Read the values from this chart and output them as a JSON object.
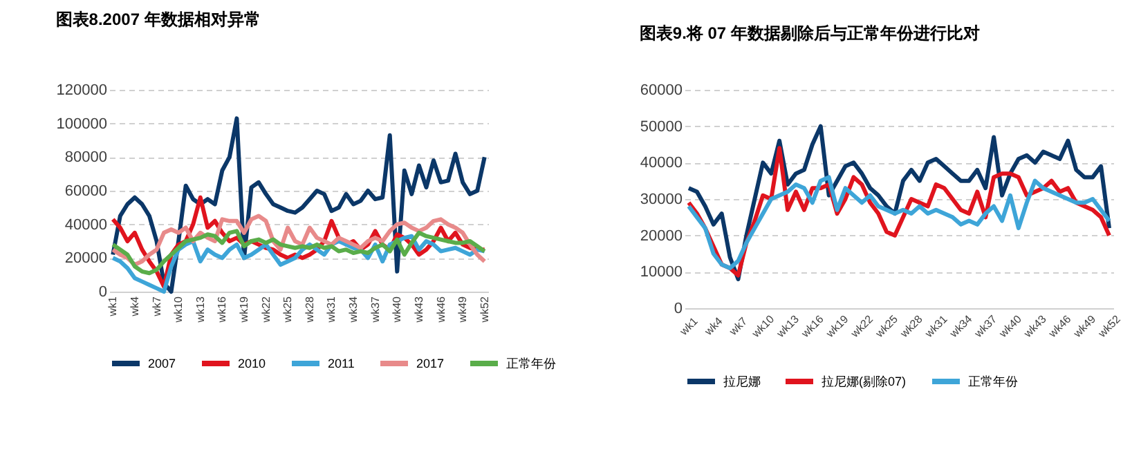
{
  "chart_data": [
    {
      "type": "line",
      "title": "图表8.2007 年数据相对异常",
      "categories": [
        "wk1",
        null,
        null,
        "wk4",
        null,
        null,
        "wk7",
        null,
        null,
        "wk10",
        null,
        null,
        "wk13",
        null,
        null,
        "wk16",
        null,
        null,
        "wk19",
        null,
        null,
        "wk22",
        null,
        null,
        "wk25",
        null,
        null,
        "wk28",
        null,
        null,
        "wk31",
        null,
        null,
        "wk34",
        null,
        null,
        "wk37",
        null,
        null,
        "wk40",
        null,
        null,
        "wk43",
        null,
        null,
        "wk46",
        null,
        null,
        "wk49",
        null,
        null,
        "wk52"
      ],
      "series": [
        {
          "name": "2007",
          "color": "#0b3768",
          "values": [
            22000,
            45000,
            52000,
            56000,
            52000,
            45000,
            30000,
            5000,
            0,
            30000,
            63000,
            55000,
            52000,
            55000,
            52000,
            72000,
            80000,
            103000,
            20000,
            62000,
            65000,
            58000,
            52000,
            50000,
            48000,
            47000,
            50000,
            55000,
            60000,
            58000,
            48000,
            50000,
            58000,
            52000,
            54000,
            60000,
            55000,
            56000,
            93000,
            12000,
            72000,
            58000,
            75000,
            62000,
            78000,
            65000,
            66000,
            82000,
            65000,
            58000,
            60000,
            80000
          ]
        },
        {
          "name": "2010",
          "color": "#e0141e",
          "values": [
            43000,
            38000,
            30000,
            35000,
            25000,
            18000,
            12000,
            3000,
            22000,
            28000,
            30000,
            40000,
            56000,
            38000,
            42000,
            35000,
            30000,
            32000,
            28000,
            30000,
            28000,
            26000,
            25000,
            22000,
            20000,
            22000,
            20000,
            22000,
            25000,
            30000,
            42000,
            32000,
            28000,
            30000,
            25000,
            28000,
            36000,
            28000,
            25000,
            34000,
            32000,
            28000,
            22000,
            25000,
            30000,
            38000,
            30000,
            35000,
            28000,
            26000,
            25000,
            25000
          ]
        },
        {
          "name": "2011",
          "color": "#3ea5d8",
          "values": [
            20000,
            18000,
            14000,
            8000,
            6000,
            4000,
            2000,
            0,
            15000,
            25000,
            28000,
            30000,
            18000,
            25000,
            22000,
            20000,
            25000,
            28000,
            20000,
            22000,
            25000,
            28000,
            22000,
            16000,
            18000,
            20000,
            25000,
            28000,
            25000,
            22000,
            28000,
            30000,
            28000,
            26000,
            25000,
            20000,
            28000,
            18000,
            28000,
            30000,
            32000,
            33000,
            25000,
            30000,
            28000,
            24000,
            25000,
            26000,
            24000,
            22000,
            25000,
            24000
          ]
        },
        {
          "name": "2017",
          "color": "#e88a8a",
          "values": [
            25000,
            22000,
            20000,
            16000,
            18000,
            22000,
            25000,
            35000,
            37000,
            35000,
            38000,
            30000,
            35000,
            32000,
            30000,
            43000,
            42000,
            42000,
            35000,
            43000,
            45000,
            42000,
            30000,
            25000,
            38000,
            30000,
            28000,
            38000,
            32000,
            30000,
            28000,
            32000,
            30000,
            28000,
            26000,
            30000,
            32000,
            30000,
            36000,
            40000,
            41000,
            38000,
            36000,
            38000,
            42000,
            43000,
            40000,
            38000,
            35000,
            28000,
            22000,
            18000
          ]
        },
        {
          "name": "正常年份",
          "color": "#5aad4a",
          "values": [
            28000,
            25000,
            22000,
            15000,
            12000,
            11000,
            13000,
            18000,
            22000,
            26000,
            30000,
            31000,
            32000,
            34000,
            33000,
            29000,
            35000,
            36000,
            27000,
            30000,
            31000,
            29000,
            31000,
            28000,
            27000,
            26000,
            27000,
            26000,
            28000,
            26000,
            27000,
            24000,
            25000,
            23000,
            24000,
            23000,
            26000,
            28000,
            24000,
            31000,
            22000,
            29000,
            35000,
            33000,
            32000,
            31000,
            30000,
            29000,
            29000,
            30000,
            27000,
            24000
          ]
        }
      ],
      "ylim": [
        0,
        120000
      ],
      "yticks": [
        0,
        20000,
        40000,
        60000,
        80000,
        100000,
        120000
      ],
      "grid": "y",
      "legend": "bottom"
    },
    {
      "type": "line",
      "title": "图表9.将 07 年数据剔除后与正常年份进行比对",
      "categories": [
        "wk1",
        null,
        null,
        "wk4",
        null,
        null,
        "wk7",
        null,
        null,
        "wk10",
        null,
        null,
        "wk13",
        null,
        null,
        "wk16",
        null,
        null,
        "wk19",
        null,
        null,
        "wk22",
        null,
        null,
        "wk25",
        null,
        null,
        "wk28",
        null,
        null,
        "wk31",
        null,
        null,
        "wk34",
        null,
        null,
        "wk37",
        null,
        null,
        "wk40",
        null,
        null,
        "wk43",
        null,
        null,
        "wk46",
        null,
        null,
        "wk49",
        null,
        null,
        "wk52"
      ],
      "series": [
        {
          "name": "拉尼娜",
          "color": "#0b3768",
          "values": [
            33000,
            32000,
            28000,
            23000,
            26000,
            14000,
            8000,
            20000,
            30000,
            40000,
            37000,
            46000,
            34000,
            37000,
            38000,
            45000,
            50000,
            31000,
            35000,
            39000,
            40000,
            37000,
            33000,
            31000,
            28000,
            26000,
            35000,
            38000,
            35000,
            40000,
            41000,
            39000,
            37000,
            35000,
            35000,
            38000,
            33000,
            47000,
            31000,
            37000,
            41000,
            42000,
            40000,
            43000,
            42000,
            41000,
            46000,
            38000,
            36000,
            36000,
            39000,
            22000
          ]
        },
        {
          "name": "拉尼娜(剔除07)",
          "color": "#e0141e",
          "values": [
            29000,
            26000,
            22000,
            17000,
            12000,
            11000,
            9000,
            18000,
            24000,
            31000,
            30000,
            44000,
            27000,
            32000,
            27000,
            33000,
            33000,
            34000,
            26000,
            30000,
            36000,
            34000,
            29000,
            26000,
            21000,
            20000,
            25000,
            30000,
            29000,
            28000,
            34000,
            33000,
            30000,
            27000,
            26000,
            32000,
            25000,
            36000,
            37000,
            37000,
            36000,
            31000,
            32000,
            33000,
            35000,
            32000,
            33000,
            29000,
            28000,
            27000,
            25000,
            20000
          ]
        },
        {
          "name": "正常年份",
          "color": "#3ea5d8",
          "values": [
            28000,
            25000,
            22000,
            15000,
            12000,
            11000,
            13000,
            18000,
            22000,
            26000,
            30000,
            31000,
            32000,
            34000,
            33000,
            29000,
            35000,
            36000,
            27000,
            33000,
            31000,
            29000,
            31000,
            28000,
            27000,
            26000,
            27000,
            26000,
            28000,
            26000,
            27000,
            26000,
            25000,
            23000,
            24000,
            23000,
            26000,
            28000,
            24000,
            31000,
            22000,
            29000,
            35000,
            33000,
            32000,
            31000,
            30000,
            29000,
            29000,
            30000,
            27000,
            24000
          ]
        }
      ],
      "ylim": [
        0,
        60000
      ],
      "yticks": [
        0,
        10000,
        20000,
        30000,
        40000,
        50000,
        60000
      ],
      "grid": "y",
      "legend": "bottom"
    }
  ]
}
